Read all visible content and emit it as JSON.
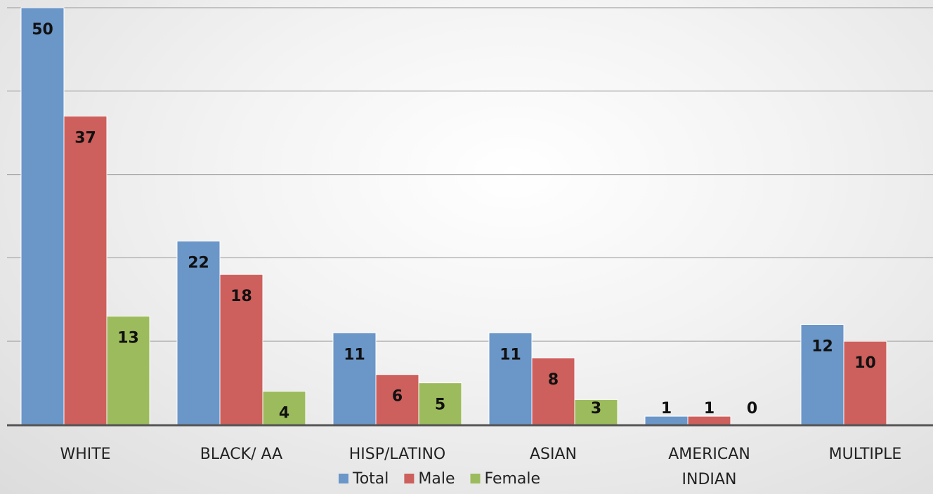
{
  "chart_data": {
    "type": "bar",
    "categories": [
      "WHITE",
      "BLACK/ AA",
      "HISP/LATINO",
      "ASIAN",
      "AMERICAN INDIAN",
      "MULTIPLE"
    ],
    "series": [
      {
        "name": "Total",
        "color": "#6a96c8",
        "values": [
          50,
          22,
          11,
          11,
          1,
          12
        ]
      },
      {
        "name": "Male",
        "color": "#cd5f5c",
        "values": [
          37,
          18,
          6,
          8,
          1,
          10
        ]
      },
      {
        "name": "Female",
        "color": "#9cbb5c",
        "values": [
          13,
          4,
          5,
          3,
          0,
          null
        ]
      }
    ],
    "data_labels": [
      [
        "50",
        "37",
        "13"
      ],
      [
        "22",
        "18",
        "4"
      ],
      [
        "11",
        "6",
        "5"
      ],
      [
        "11",
        "8",
        "3"
      ],
      [
        "1",
        "1",
        "0"
      ],
      [
        "12",
        "10",
        ""
      ]
    ],
    "ylim": [
      0,
      50
    ],
    "gridline_step": 10,
    "grid": true,
    "legend_position": "bottom"
  }
}
